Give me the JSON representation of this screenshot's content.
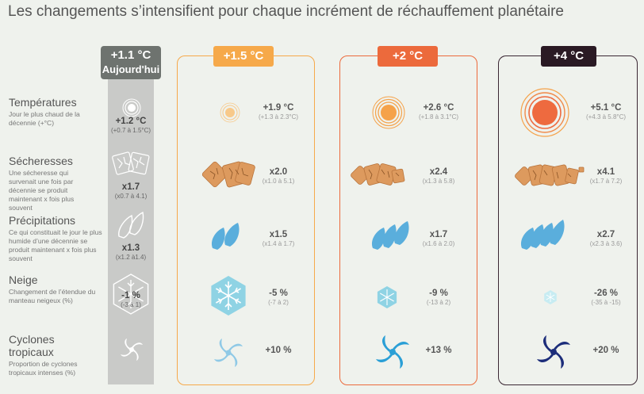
{
  "title": "Les changements s’intensifient pour chaque incrément de réchauffement planétaire",
  "columns": {
    "today": {
      "label": "+1.1 °C",
      "sublabel": "Aujourd'hui"
    },
    "w15": {
      "label": "+1.5 °C"
    },
    "w2": {
      "label": "+2 °C"
    },
    "w4": {
      "label": "+4 °C"
    }
  },
  "rows": {
    "temperatures": {
      "label": "Températures",
      "desc": "Jour le plus chaud de la décennie (+°C)",
      "today": {
        "value": "+1.2 °C",
        "range": "(+0.7 à 1.5°C)"
      },
      "w15": {
        "value": "+1.9 °C",
        "range": "(+1.3 à 2.3°C)"
      },
      "w2": {
        "value": "+2.6 °C",
        "range": "(+1.8 à 3.1°C)"
      },
      "w4": {
        "value": "+5.1 °C",
        "range": "(+4.3 à 5.8°C)"
      }
    },
    "secheresses": {
      "label": "Sécheresses",
      "desc": "Une sécheresse qui survenait une fois par décennie se produit maintenant x fois plus souvent",
      "today": {
        "value": "x1.7",
        "range": "(x0.7 à 4.1)"
      },
      "w15": {
        "value": "x2.0",
        "range": "(x1.0 à 5.1)"
      },
      "w2": {
        "value": "x2.4",
        "range": "(x1.3 à 5.8)"
      },
      "w4": {
        "value": "x4.1",
        "range": "(x1.7 à 7.2)"
      }
    },
    "precipitations": {
      "label": "Précipitations",
      "desc": "Ce qui constituait le jour le plus humide d’une décennie se produit maintenant x fois plus souvent",
      "today": {
        "value": "x1.3",
        "range": "(x1.2 à1.4)"
      },
      "w15": {
        "value": "x1.5",
        "range": "(x1.4 à 1.7)"
      },
      "w2": {
        "value": "x1.7",
        "range": "(x1.6 à 2.0)"
      },
      "w4": {
        "value": "x2.7",
        "range": "(x2.3 à 3.6)"
      }
    },
    "neige": {
      "label": "Neige",
      "desc": "Changement de l’étendue du manteau neigeux (%)",
      "today": {
        "value": "-1 %",
        "range": "(-3 à 1)"
      },
      "w15": {
        "value": "-5 %",
        "range": "(-7 à 2)"
      },
      "w2": {
        "value": "-9 %",
        "range": "(-13 à 2)"
      },
      "w4": {
        "value": "-26 %",
        "range": "(-35 à -15)"
      }
    },
    "cyclones": {
      "label": "Cyclones tropicaux",
      "desc": "Proportion de cyclones tropicaux intenses (%)",
      "w15": {
        "value": "+10 %"
      },
      "w2": {
        "value": "+13 %"
      },
      "w4": {
        "value": "+20 %"
      }
    }
  },
  "colors": {
    "w15": "#f6a94a",
    "w2": "#ec6a3c",
    "w4": "#2a1a24",
    "today": "#6e736f",
    "drop": "#5aaedc",
    "cracked_earth": "#dd9a5e",
    "snowflake": "#8fd3e4"
  },
  "icons": [
    "sun-icon",
    "cracked-earth-icon",
    "raindrop-icon",
    "snowflake-icon",
    "cyclone-icon"
  ]
}
